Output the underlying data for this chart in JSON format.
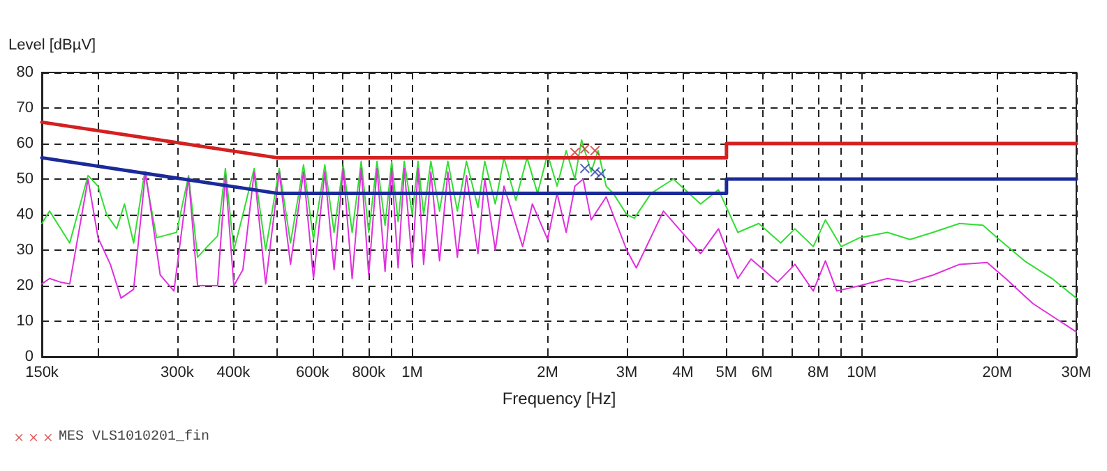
{
  "chart_data": {
    "type": "line",
    "ylabel": "Level [dBµV]",
    "xlabel": "Frequency [Hz]",
    "log": "x",
    "grid": true,
    "legend": "bottom left",
    "marker": "none",
    "xlim": [
      150000,
      30000000
    ],
    "xticks": [
      {
        "value": 150000,
        "label": "150k"
      },
      {
        "value": 200000,
        "label": null
      },
      {
        "value": 300000,
        "label": "300k"
      },
      {
        "value": 400000,
        "label": "400k"
      },
      {
        "value": 500000,
        "label": null
      },
      {
        "value": 600000,
        "label": "600k"
      },
      {
        "value": 700000,
        "label": null
      },
      {
        "value": 800000,
        "label": "800k"
      },
      {
        "value": 900000,
        "label": null
      },
      {
        "value": 1000000,
        "label": "1M"
      },
      {
        "value": 2000000,
        "label": "2M"
      },
      {
        "value": 3000000,
        "label": "3M"
      },
      {
        "value": 4000000,
        "label": "4M"
      },
      {
        "value": 5000000,
        "label": "5M"
      },
      {
        "value": 6000000,
        "label": "6M"
      },
      {
        "value": 7000000,
        "label": null
      },
      {
        "value": 8000000,
        "label": "8M"
      },
      {
        "value": 9000000,
        "label": null
      },
      {
        "value": 10000000,
        "label": "10M"
      },
      {
        "value": 20000000,
        "label": "20M"
      },
      {
        "value": 30000000,
        "label": "30M"
      }
    ],
    "ylim": [
      0,
      80
    ],
    "yticks": [
      0,
      10,
      20,
      30,
      40,
      50,
      60,
      70,
      80
    ],
    "series": [
      {
        "color": "#33dd33",
        "x": [
          150000,
          156000,
          173000,
          190000,
          200000,
          209000,
          220000,
          229000,
          240000,
          254000,
          270000,
          299000,
          318000,
          333000,
          350000,
          369000,
          384000,
          401000,
          420000,
          445000,
          472000,
          506000,
          536000,
          573000,
          603000,
          639000,
          670000,
          702000,
          735000,
          770000,
          800000,
          835000,
          870000,
          900000,
          930000,
          960000,
          1000000,
          1030000,
          1060000,
          1100000,
          1150000,
          1200000,
          1260000,
          1320000,
          1400000,
          1450000,
          1530000,
          1600000,
          1700000,
          1800000,
          1900000,
          2000000,
          2100000,
          2200000,
          2300000,
          2380000,
          2500000,
          2590000,
          2700000,
          2800000,
          3000000,
          3120000,
          3400000,
          3810000,
          4380000,
          4800000,
          5300000,
          5900000,
          6600000,
          7100000,
          7800000,
          8300000,
          9000000,
          9900000,
          11400000,
          12800000,
          14400000,
          16500000,
          18600000,
          20000000,
          23000000,
          26500000,
          30000000
        ],
        "values": [
          37.5,
          41,
          32,
          51,
          48,
          40,
          36,
          43,
          32,
          52,
          33.5,
          35,
          51,
          28,
          31,
          34,
          53,
          30,
          40,
          53,
          30,
          53,
          32,
          54,
          33,
          54,
          35,
          54,
          35,
          55,
          35,
          55,
          37,
          55,
          38,
          55,
          40,
          55,
          40,
          55,
          41,
          55,
          41,
          55,
          42,
          55,
          43,
          56,
          44,
          56,
          46,
          57,
          48,
          58,
          50,
          61,
          52,
          58,
          48,
          46,
          40,
          39,
          46,
          50,
          43,
          47,
          35,
          37.5,
          32,
          36,
          31,
          38.5,
          31,
          33.5,
          35,
          33,
          35,
          37.5,
          37,
          33.5,
          27,
          22,
          16.5
        ]
      },
      {
        "color": "#e030e0",
        "x": [
          150000,
          156000,
          165000,
          173000,
          190000,
          200000,
          213000,
          225000,
          240000,
          255000,
          275000,
          295000,
          318000,
          333000,
          369000,
          384000,
          401000,
          420000,
          445000,
          472000,
          506000,
          536000,
          573000,
          603000,
          639000,
          670000,
          702000,
          735000,
          770000,
          800000,
          835000,
          870000,
          900000,
          930000,
          960000,
          1000000,
          1030000,
          1060000,
          1100000,
          1150000,
          1200000,
          1260000,
          1320000,
          1400000,
          1450000,
          1530000,
          1600000,
          1760000,
          1850000,
          2000000,
          2100000,
          2200000,
          2300000,
          2400000,
          2500000,
          2700000,
          3000000,
          3150000,
          3620000,
          4380000,
          4800000,
          5300000,
          5670000,
          6500000,
          7100000,
          7800000,
          8300000,
          8800000,
          9900000,
          11400000,
          12800000,
          14400000,
          16500000,
          19000000,
          20900000,
          24000000,
          30000000
        ],
        "values": [
          20.5,
          22,
          21,
          20.5,
          50,
          33.5,
          26,
          16.5,
          19,
          52,
          23,
          18.5,
          50.5,
          20,
          20,
          51,
          20,
          24.5,
          52,
          20.5,
          52,
          26,
          52,
          22,
          52,
          24.5,
          53,
          22,
          53,
          23,
          53,
          24,
          53,
          25,
          53,
          26,
          53,
          26,
          52,
          27,
          52,
          28,
          51,
          29,
          50,
          30,
          48,
          31,
          43,
          33,
          46,
          35,
          48,
          50,
          38.5,
          45,
          30,
          25,
          41,
          29,
          36,
          22,
          27.5,
          21,
          26,
          18.5,
          27,
          18.5,
          20,
          22,
          21,
          23,
          26,
          26.5,
          22,
          15,
          7
        ]
      },
      {
        "color": "#d42020",
        "x": [
          150000,
          500000,
          5000000,
          5000000,
          30000000
        ],
        "values": [
          66,
          56,
          56,
          60,
          60
        ]
      },
      {
        "color": "#1a2a9a",
        "x": [
          150000,
          500000,
          5000000,
          5000000,
          30000000
        ],
        "values": [
          56,
          46,
          46,
          50,
          50
        ]
      },
      {
        "type": "scatter",
        "name": "MES VLS1010201_fin",
        "marker": "cross",
        "color": "#d03030",
        "x": [
          2300000,
          2420000,
          2550000
        ],
        "values": [
          57.5,
          58.5,
          58
        ]
      },
      {
        "type": "scatter",
        "marker": "cross",
        "color": "#2a3aaa",
        "x": [
          2420000,
          2550000,
          2630000
        ],
        "values": [
          53,
          52,
          51.5
        ]
      }
    ]
  }
}
